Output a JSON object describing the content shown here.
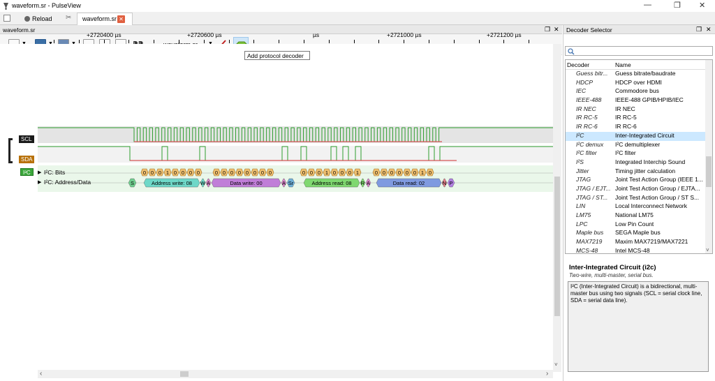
{
  "window": {
    "title": "waveform.sr - PulseView",
    "minimize": "—",
    "maximize": "❐",
    "close": "✕"
  },
  "tabbar": {
    "reload_label": "Reload",
    "doc_tab": "waveform.sr",
    "doc_close": "✕"
  },
  "view": {
    "dock_title": "waveform.sr",
    "file_select": "waveform.sr",
    "tooltip": "Add protocol decoder",
    "ruler_labels": [
      "+2720400 µs",
      "+2720600 µs",
      "µs",
      "+2721000 µs",
      "+2721200 µs"
    ],
    "channels": [
      {
        "name": "SCL",
        "color": "#1a1a1a"
      },
      {
        "name": "SDA",
        "color": "#b8710a"
      }
    ],
    "decoder_chip": "I²C",
    "decoder_color": "#3aa63a",
    "rows": [
      "I²C: Bits",
      "I²C: Address/Data"
    ],
    "bit_groups": [
      [
        "0",
        "0",
        "0",
        "1",
        "0",
        "0",
        "0",
        "0"
      ],
      [
        "0",
        "0",
        "0",
        "0",
        "0",
        "0",
        "0",
        "0"
      ],
      [
        "0",
        "0",
        "0",
        "1",
        "0",
        "0",
        "0",
        "1"
      ],
      [
        "0",
        "0",
        "0",
        "0",
        "0",
        "0",
        "1",
        "0"
      ]
    ],
    "annotations": [
      {
        "text": "S",
        "color": "#6fcf8f"
      },
      {
        "text": "Address write: 08",
        "color": "#6ed8c8"
      },
      {
        "text": "W",
        "color": "#6ed8c8"
      },
      {
        "text": "A",
        "color": "#d883c8"
      },
      {
        "text": "Data write: 00",
        "color": "#c07ed8"
      },
      {
        "text": "A",
        "color": "#d883c8"
      },
      {
        "text": "Sr",
        "color": "#6fb0d8"
      },
      {
        "text": "Address read: 08",
        "color": "#7fd870"
      },
      {
        "text": "R",
        "color": "#7fd870"
      },
      {
        "text": "A",
        "color": "#d883c8"
      },
      {
        "text": "Data read: 02",
        "color": "#7f9ae0"
      },
      {
        "text": "N",
        "color": "#e07f8a"
      },
      {
        "text": "P",
        "color": "#b07ee0"
      }
    ]
  },
  "decoder_selector": {
    "title": "Decoder Selector",
    "search_placeholder": "",
    "col_decoder": "Decoder",
    "col_name": "Name",
    "rows": [
      {
        "id": "Guess bitr...",
        "name": "Guess bitrate/baudrate"
      },
      {
        "id": "HDCP",
        "name": "HDCP over HDMI"
      },
      {
        "id": "IEC",
        "name": "Commodore bus"
      },
      {
        "id": "IEEE-488",
        "name": "IEEE-488 GPIB/HPIB/IEC"
      },
      {
        "id": "IR NEC",
        "name": "IR NEC"
      },
      {
        "id": "IR RC-5",
        "name": "IR RC-5"
      },
      {
        "id": "IR RC-6",
        "name": "IR RC-6"
      },
      {
        "id": "I²C",
        "name": "Inter-Integrated Circuit"
      },
      {
        "id": "I²C demux",
        "name": "I²C demultiplexer"
      },
      {
        "id": "I²C filter",
        "name": "I²C filter"
      },
      {
        "id": "I²S",
        "name": "Integrated Interchip Sound"
      },
      {
        "id": "Jitter",
        "name": "Timing jitter calculation"
      },
      {
        "id": "JTAG",
        "name": "Joint Test Action Group (IEEE 1..."
      },
      {
        "id": "JTAG / EJT...",
        "name": "Joint Test Action Group / EJTA..."
      },
      {
        "id": "JTAG / ST...",
        "name": "Joint Test Action Group / ST S..."
      },
      {
        "id": "LIN",
        "name": "Local Interconnect Network"
      },
      {
        "id": "LM75",
        "name": "National LM75"
      },
      {
        "id": "LPC",
        "name": "Low Pin Count"
      },
      {
        "id": "Maple bus",
        "name": "SEGA Maple bus"
      },
      {
        "id": "MAX7219",
        "name": "Maxim MAX7219/MAX7221"
      },
      {
        "id": "MCS-48",
        "name": "Intel MCS-48"
      }
    ],
    "selected_index": 7,
    "info_title": "Inter-Integrated Circuit (i2c)",
    "info_sub": "Two-wire, multi-master, serial bus.",
    "info_body": "I²C (Inter-Integrated Circuit) is a bidirectional, multi-master bus using two signals (SCL = serial clock line, SDA = serial data line)."
  }
}
